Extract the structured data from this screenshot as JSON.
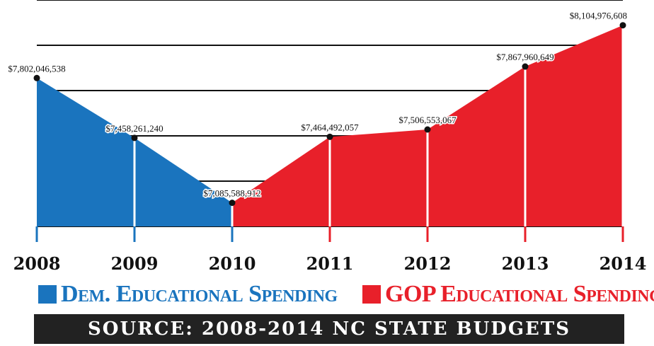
{
  "chart_data": {
    "type": "area",
    "x": [
      "2008",
      "2009",
      "2010",
      "2011",
      "2012",
      "2013",
      "2014"
    ],
    "values": [
      7802046538,
      7458261240,
      7085588912,
      7464492057,
      7506553067,
      7867960649,
      8104976608
    ],
    "value_labels": [
      "$7,802,046,538",
      "$7,458,261,240",
      "$7,085,588,912",
      "$7,464,492,057",
      "$7,506,553,067",
      "$7,867,960,649",
      "$8,104,976,608"
    ],
    "series": [
      {
        "name": "Dem. Educational Spending",
        "color": "#1a74be",
        "range": [
          0,
          2
        ]
      },
      {
        "name": "GOP Educational Spending",
        "color": "#e8202a",
        "range": [
          2,
          6
        ]
      }
    ],
    "ylim": [
      6950000000,
      8250000000
    ],
    "grid": true,
    "legend": "bottom",
    "source": "SOURCE: 2008-2014 NC STATE BUDGETS"
  }
}
